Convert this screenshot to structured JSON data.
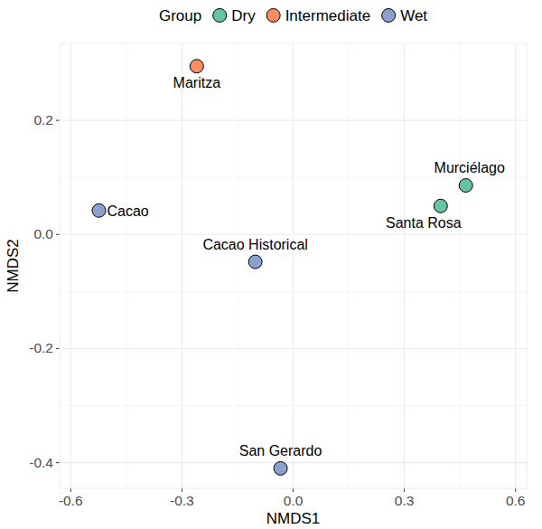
{
  "chart_data": {
    "type": "scatter",
    "x_label": "NMDS1",
    "y_label": "NMDS2",
    "legend_title": "Group",
    "legend": "top",
    "grid": true,
    "xlim": [
      -0.63,
      0.63
    ],
    "ylim": [
      -0.445,
      0.335
    ],
    "xticks": [
      -0.6,
      -0.3,
      {
        "value": 0,
        "label": "0.0"
      },
      0.3,
      0.6
    ],
    "yticks": [
      -0.4,
      -0.2,
      {
        "value": 0,
        "label": "0.0"
      },
      0.2
    ],
    "series": [
      {
        "name": "Dry",
        "color": "#66c2a5",
        "marker": "circle",
        "x": [
          0.466,
          0.398
        ],
        "values": [
          0.086,
          0.05
        ],
        "point_labels": [
          "Murciélago",
          "Santa Rosa"
        ]
      },
      {
        "name": "Intermediate",
        "color": "#fc8d62",
        "marker": "circle",
        "x": [
          -0.26
        ],
        "values": [
          0.295
        ],
        "point_labels": [
          "Maritza"
        ]
      },
      {
        "name": "Wet",
        "color": "#8da0cb",
        "marker": "circle",
        "x": [
          -0.524,
          -0.102,
          -0.034
        ],
        "values": [
          0.042,
          -0.048,
          -0.41
        ],
        "point_labels": [
          "Cacao",
          "Cacao Historical",
          "San Gerardo"
        ]
      }
    ]
  }
}
